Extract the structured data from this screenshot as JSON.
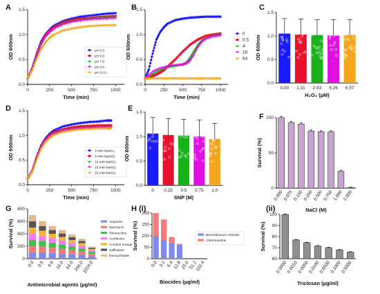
{
  "chart_data": [
    {
      "id": "A",
      "panel_label": "A",
      "type": "line",
      "xlabel": "Time (min)",
      "ylabel": "OD 600nm",
      "xlim": [
        0,
        1100
      ],
      "ylim": [
        0,
        1.5
      ],
      "xticks": [
        0,
        250,
        500,
        750,
        1000
      ],
      "yticks": [
        0.0,
        0.5,
        1.0,
        1.5
      ],
      "legend": "bottom-right",
      "series": [
        {
          "name": "pH 5.0",
          "color": "#1a1aff",
          "marker": "circle",
          "x": [
            0,
            50,
            100,
            150,
            200,
            250,
            300,
            400,
            500,
            600,
            700,
            800,
            900,
            1000
          ],
          "y": [
            0.12,
            0.32,
            0.6,
            0.85,
            1.0,
            1.1,
            1.18,
            1.27,
            1.32,
            1.36,
            1.38,
            1.4,
            1.42,
            1.43
          ]
        },
        {
          "name": "pH 6.0",
          "color": "#e8112d",
          "marker": "square",
          "x": [
            0,
            50,
            100,
            150,
            200,
            250,
            300,
            400,
            500,
            600,
            700,
            800,
            900,
            1000
          ],
          "y": [
            0.12,
            0.3,
            0.58,
            0.82,
            0.98,
            1.08,
            1.15,
            1.24,
            1.29,
            1.32,
            1.33,
            1.35,
            1.36,
            1.37
          ]
        },
        {
          "name": "pH 7.0",
          "color": "#19b21b",
          "marker": "triangle",
          "x": [
            0,
            50,
            100,
            150,
            200,
            250,
            300,
            400,
            500,
            600,
            700,
            800,
            900,
            1000
          ],
          "y": [
            0.12,
            0.3,
            0.57,
            0.8,
            0.96,
            1.06,
            1.13,
            1.22,
            1.27,
            1.3,
            1.32,
            1.34,
            1.35,
            1.36
          ]
        },
        {
          "name": "pH 8.0",
          "color": "#e010e0",
          "marker": "triangle-down",
          "x": [
            0,
            50,
            100,
            150,
            200,
            250,
            300,
            400,
            500,
            600,
            700,
            800,
            900,
            1000
          ],
          "y": [
            0.12,
            0.29,
            0.56,
            0.79,
            0.95,
            1.05,
            1.12,
            1.2,
            1.25,
            1.28,
            1.3,
            1.31,
            1.32,
            1.33
          ]
        },
        {
          "name": "pH 10.0",
          "color": "#f5a51c",
          "marker": "diamond",
          "x": [
            0,
            50,
            100,
            150,
            200,
            250,
            300,
            400,
            500,
            600,
            700,
            800,
            900,
            1000
          ],
          "y": [
            0.12,
            0.28,
            0.5,
            0.7,
            0.84,
            0.94,
            1.0,
            1.08,
            1.12,
            1.15,
            1.17,
            1.18,
            1.19,
            1.19
          ]
        }
      ]
    },
    {
      "id": "B",
      "panel_label": "B",
      "type": "line",
      "xlabel": "Time (min)",
      "ylabel": "OD 600nm",
      "xlim": [
        0,
        1100
      ],
      "ylim": [
        0,
        1.5
      ],
      "xticks": [
        0,
        250,
        500,
        750,
        1000
      ],
      "yticks": [
        0.0,
        0.5,
        1.0,
        1.5
      ],
      "legend": "right",
      "series": [
        {
          "name": "0",
          "color": "#1a1aff",
          "marker": "circle",
          "x": [
            0,
            50,
            100,
            150,
            200,
            250,
            300,
            400,
            500,
            600,
            700,
            800,
            900,
            1000
          ],
          "y": [
            0.12,
            0.3,
            0.62,
            0.9,
            1.05,
            1.15,
            1.22,
            1.29,
            1.32,
            1.34,
            1.35,
            1.36,
            1.36,
            1.36
          ]
        },
        {
          "name": "0.5",
          "color": "#e8112d",
          "marker": "square",
          "x": [
            0,
            50,
            100,
            150,
            200,
            250,
            300,
            400,
            500,
            600,
            700,
            800,
            900,
            1000
          ],
          "y": [
            0.12,
            0.14,
            0.17,
            0.2,
            0.24,
            0.29,
            0.36,
            0.5,
            0.66,
            0.8,
            0.9,
            0.97,
            1.0,
            1.02
          ]
        },
        {
          "name": "4",
          "color": "#19b21b",
          "marker": "triangle",
          "x": [
            0,
            100,
            200,
            300,
            400,
            500,
            550,
            600,
            650,
            700,
            750,
            800,
            900,
            1000
          ],
          "y": [
            0.12,
            0.22,
            0.3,
            0.35,
            0.38,
            0.4,
            0.45,
            0.55,
            0.68,
            0.8,
            0.88,
            0.93,
            0.98,
            1.0
          ]
        },
        {
          "name": "16",
          "color": "#e010e0",
          "marker": "triangle-down",
          "x": [
            0,
            100,
            200,
            300,
            400,
            500,
            550,
            600,
            650,
            700,
            750,
            800,
            900,
            1000
          ],
          "y": [
            0.12,
            0.25,
            0.32,
            0.36,
            0.38,
            0.4,
            0.42,
            0.48,
            0.6,
            0.75,
            0.85,
            0.91,
            0.96,
            0.98
          ]
        },
        {
          "name": "64",
          "color": "#f5a51c",
          "marker": "diamond",
          "x": [
            0,
            100,
            200,
            300,
            400,
            500,
            600,
            700,
            800,
            900,
            1000
          ],
          "y": [
            0.12,
            0.12,
            0.12,
            0.12,
            0.12,
            0.12,
            0.12,
            0.12,
            0.12,
            0.12,
            0.12
          ]
        }
      ]
    },
    {
      "id": "C",
      "panel_label": "C",
      "type": "bar",
      "xlabel": "H₂O₂ (µM)",
      "ylabel": "OD 600nm",
      "ylim": [
        0,
        1.5
      ],
      "yticks": [
        0.0,
        0.5,
        1.0,
        1.5
      ],
      "categories": [
        "0.00",
        "1.31",
        "2.63",
        "5.26",
        "6.57"
      ],
      "values": [
        1.05,
        1.03,
        1.02,
        1.01,
        1.02
      ],
      "errors": [
        0.32,
        0.33,
        0.33,
        0.34,
        0.33
      ],
      "colors": [
        "#1a1aff",
        "#e8112d",
        "#19b21b",
        "#e010e0",
        "#f5a51c"
      ]
    },
    {
      "id": "D",
      "panel_label": "D",
      "type": "line",
      "xlabel": "Time (min)",
      "ylabel": "OD 600nm",
      "xlim": [
        0,
        1100
      ],
      "ylim": [
        0,
        1.5
      ],
      "xticks": [
        0,
        250,
        500,
        750,
        1000
      ],
      "yticks": [
        0.0,
        0.5,
        1.0,
        1.5
      ],
      "legend": "bottom-right",
      "series": [
        {
          "name": "0 mM NaNO₂",
          "color": "#1a1aff",
          "marker": "circle",
          "x": [
            0,
            50,
            100,
            150,
            200,
            250,
            300,
            400,
            500,
            600,
            700,
            800,
            900,
            950
          ],
          "y": [
            0.12,
            0.28,
            0.55,
            0.78,
            0.93,
            1.03,
            1.1,
            1.18,
            1.22,
            1.25,
            1.27,
            1.28,
            1.3,
            1.3
          ]
        },
        {
          "name": "5 mM NaNO2",
          "color": "#e8112d",
          "marker": "square",
          "x": [
            0,
            50,
            100,
            150,
            200,
            250,
            300,
            400,
            500,
            600,
            700,
            800,
            900,
            950
          ],
          "y": [
            0.12,
            0.27,
            0.53,
            0.75,
            0.9,
            1.0,
            1.06,
            1.12,
            1.16,
            1.18,
            1.19,
            1.2,
            1.2,
            1.2
          ]
        },
        {
          "name": "10 mM NaNO₂",
          "color": "#19b21b",
          "marker": "triangle",
          "x": [
            0,
            50,
            100,
            150,
            200,
            250,
            300,
            400,
            500,
            600,
            700,
            800,
            900,
            950
          ],
          "y": [
            0.12,
            0.27,
            0.52,
            0.74,
            0.89,
            0.98,
            1.04,
            1.1,
            1.13,
            1.15,
            1.16,
            1.17,
            1.17,
            1.17
          ]
        },
        {
          "name": "15 mM NaNO₂",
          "color": "#e010e0",
          "marker": "triangle-down",
          "x": [
            0,
            50,
            100,
            150,
            200,
            250,
            300,
            400,
            500,
            600,
            700,
            800,
            900,
            950
          ],
          "y": [
            0.12,
            0.27,
            0.52,
            0.74,
            0.88,
            0.97,
            1.03,
            1.09,
            1.12,
            1.14,
            1.15,
            1.16,
            1.16,
            1.16
          ]
        },
        {
          "name": "20 mM NaNO₂",
          "color": "#f5a51c",
          "marker": "diamond",
          "x": [
            0,
            50,
            100,
            150,
            200,
            250,
            300,
            400,
            500,
            600,
            700,
            800,
            900,
            950
          ],
          "y": [
            0.12,
            0.26,
            0.5,
            0.72,
            0.86,
            0.95,
            1.01,
            1.07,
            1.1,
            1.12,
            1.13,
            1.14,
            1.14,
            1.14
          ]
        }
      ]
    },
    {
      "id": "E",
      "panel_label": "E",
      "type": "bar",
      "xlabel": "SNP (M)",
      "ylabel": "OD 600nm",
      "ylim": [
        0,
        1.5
      ],
      "yticks": [
        0.0,
        0.5,
        1.0,
        1.5
      ],
      "categories": [
        "0",
        "0.25",
        "0.5",
        "0.75",
        "1.0"
      ],
      "values": [
        1.06,
        1.03,
        1.02,
        1.0,
        0.95
      ],
      "errors": [
        0.33,
        0.34,
        0.33,
        0.34,
        0.32
      ],
      "colors": [
        "#1a1aff",
        "#e8112d",
        "#19b21b",
        "#e010e0",
        "#f5a51c"
      ]
    },
    {
      "id": "F",
      "panel_label": "F",
      "type": "bar",
      "xlabel": "NaCl (M)",
      "ylabel": "Survival (%)",
      "ylim": [
        0,
        100
      ],
      "yticks": [
        0,
        50,
        100
      ],
      "categories": [
        "0.000",
        "0.075",
        "0.150",
        "0.250",
        "0.500",
        "0.750",
        "1.000",
        "2.000"
      ],
      "values": [
        100,
        93,
        91,
        81,
        80,
        80,
        24,
        1
      ],
      "errors": [
        1.5,
        1.5,
        1.5,
        1.5,
        1.5,
        1.5,
        1.5,
        0.5
      ],
      "colors": [
        "#c9a3cf"
      ]
    },
    {
      "id": "G",
      "panel_label": "G",
      "type": "bar",
      "stacked": true,
      "xlabel": "Antimicrobial agents (µg/ml)",
      "ylabel": "Survival (%)",
      "ylim": [
        0,
        800
      ],
      "yticks": [
        0,
        200,
        400,
        600,
        800
      ],
      "categories": [
        "0.0",
        "0.5",
        "4.0",
        "16.0",
        "64.0",
        "256.0",
        "1024.0"
      ],
      "legend": "right",
      "series": [
        {
          "name": "Ampicilin",
          "color": "#7e8af0",
          "values": [
            100,
            100,
            90,
            80,
            70,
            60,
            40
          ]
        },
        {
          "name": "Neomycin",
          "color": "#f47b7b",
          "values": [
            100,
            95,
            85,
            75,
            65,
            55,
            40
          ]
        },
        {
          "name": "Tetracycline",
          "color": "#3ec24a",
          "values": [
            100,
            90,
            80,
            70,
            60,
            50,
            30
          ]
        },
        {
          "name": "Acriflavine",
          "color": "#f07cf0",
          "values": [
            100,
            85,
            75,
            65,
            55,
            45,
            25
          ]
        },
        {
          "name": "Acridine orange",
          "color": "#f5b33c",
          "values": [
            100,
            80,
            70,
            60,
            50,
            40,
            20
          ]
        },
        {
          "name": "Saffranine",
          "color": "#555555",
          "values": [
            100,
            75,
            60,
            55,
            45,
            35,
            20
          ]
        },
        {
          "name": "Deoxycholate",
          "color": "#e3b98c",
          "values": [
            100,
            80,
            65,
            55,
            45,
            35,
            20
          ]
        }
      ]
    },
    {
      "id": "H",
      "panel_label": "H (i)",
      "type": "bar",
      "stacked": true,
      "xlabel": "Biocides (µg/ml)",
      "ylabel": "Survival (%)",
      "ylim": [
        0,
        200
      ],
      "yticks": [
        0,
        50,
        100,
        150,
        200
      ],
      "categories": [
        "0.0",
        "3.2",
        "6.4",
        "12.8",
        "25.6",
        "51.2",
        "102.4"
      ],
      "legend": "right",
      "series": [
        {
          "name": "Benzalkonium chloride",
          "color": "#7e8af0",
          "values": [
            100,
            82,
            70,
            62,
            0,
            0,
            0
          ]
        },
        {
          "name": "Chlorhexidine",
          "color": "#f47b7b",
          "values": [
            100,
            90,
            25,
            3,
            0,
            0,
            0
          ]
        }
      ]
    },
    {
      "id": "Hii",
      "panel_label": "(ii)",
      "type": "bar",
      "xlabel": "Triclosan (µg/ml)",
      "ylabel": "Survival (%)",
      "ylim": [
        60,
        100
      ],
      "yticks": [
        60,
        70,
        80,
        90,
        100
      ],
      "categories": [
        "0.0000",
        "0.0010",
        "0.0050",
        "0.0100",
        "0.0500",
        "0.1000",
        "0.5000"
      ],
      "values": [
        100,
        77,
        74.5,
        71.5,
        70,
        68,
        66
      ],
      "errors": [
        0.4,
        0.4,
        0.4,
        0.4,
        0.4,
        0.4,
        0.4
      ],
      "colors": [
        "#8f8f8f"
      ]
    }
  ]
}
